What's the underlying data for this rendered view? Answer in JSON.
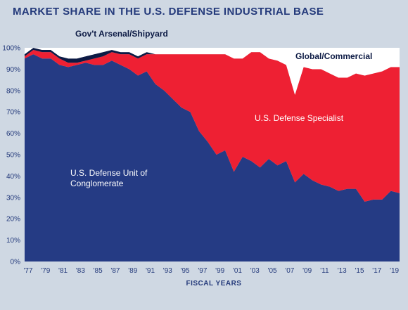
{
  "chart_data": {
    "type": "area",
    "stacked": true,
    "normalized": true,
    "title": "MARKET SHARE IN THE U.S. DEFENSE INDUSTRIAL BASE",
    "xlabel": "FISCAL YEARS",
    "ylabel": "",
    "x_tick_labels": [
      "'77",
      "'79",
      "'81",
      "'83",
      "'85",
      "'87",
      "'89",
      "'91",
      "'93",
      "'95",
      "'97",
      "'99",
      "'01",
      "'03",
      "'05",
      "'07",
      "'09",
      "'11",
      "'13",
      "'15",
      "'17",
      "'19"
    ],
    "y_tick_labels": [
      "0%",
      "10%",
      "20%",
      "30%",
      "40%",
      "50%",
      "60%",
      "70%",
      "80%",
      "90%",
      "100%"
    ],
    "ylim": [
      0,
      100
    ],
    "grid": false,
    "colors": {
      "conglomerate": "#253b84",
      "specialist": "#ee2033",
      "arsenal": "#0d1b45",
      "commercial": "#ffffff",
      "background": "#cfd8e3",
      "text": "#243a7b"
    },
    "x": [
      1977,
      1978,
      1979,
      1980,
      1981,
      1982,
      1983,
      1984,
      1985,
      1986,
      1987,
      1988,
      1989,
      1990,
      1991,
      1992,
      1993,
      1994,
      1995,
      1996,
      1997,
      1998,
      1999,
      2000,
      2001,
      2002,
      2003,
      2004,
      2005,
      2006,
      2007,
      2008,
      2009,
      2010,
      2011,
      2012,
      2013,
      2014,
      2015,
      2016,
      2017,
      2018,
      2019,
      2020
    ],
    "series": [
      {
        "name": "U.S. Defense Unit of Conglomerate",
        "values": [
          95,
          97,
          95,
          95,
          92,
          91,
          92,
          93,
          92,
          92,
          94,
          92,
          90,
          87,
          89,
          83,
          80,
          76,
          72,
          70,
          61,
          56,
          50,
          52,
          42,
          49,
          47,
          44,
          48,
          45,
          47,
          37,
          41,
          38,
          36,
          35,
          33,
          34,
          34,
          28,
          29,
          29,
          33,
          32
        ]
      },
      {
        "name": "U.S. Defense Specialist",
        "values": [
          1,
          2,
          3,
          3,
          3,
          2,
          1,
          1,
          3,
          4,
          4,
          5,
          7,
          8,
          8,
          14,
          17,
          21,
          25,
          27,
          36,
          41,
          47,
          45,
          53,
          46,
          51,
          54,
          47,
          49,
          45,
          41,
          50,
          52,
          54,
          53,
          53,
          52,
          54,
          59,
          59,
          60,
          58,
          59
        ]
      },
      {
        "name": "Gov't Arsenal/Shipyard",
        "values": [
          1,
          1,
          1,
          1,
          1,
          2,
          2,
          2,
          2,
          2,
          1,
          1,
          1,
          1,
          1,
          0,
          0,
          0,
          0,
          0,
          0,
          0,
          0,
          0,
          0,
          0,
          0,
          0,
          0,
          0,
          0,
          0,
          0,
          0,
          0,
          0,
          0,
          0,
          0,
          0,
          0,
          0,
          0,
          0
        ]
      },
      {
        "name": "Global/Commercial",
        "values": [
          3,
          0,
          1,
          1,
          4,
          5,
          5,
          4,
          3,
          2,
          1,
          2,
          2,
          4,
          2,
          3,
          3,
          3,
          3,
          3,
          3,
          3,
          3,
          3,
          5,
          5,
          2,
          2,
          5,
          6,
          8,
          22,
          9,
          10,
          10,
          12,
          14,
          14,
          12,
          13,
          12,
          11,
          9,
          9
        ]
      }
    ],
    "series_labels": {
      "conglomerate_line1": "U.S. Defense Unit of",
      "conglomerate_line2": "Conglomerate",
      "specialist": "U.S. Defense Specialist",
      "arsenal": "Gov't Arsenal/Shipyard",
      "commercial": "Global/Commercial"
    }
  }
}
